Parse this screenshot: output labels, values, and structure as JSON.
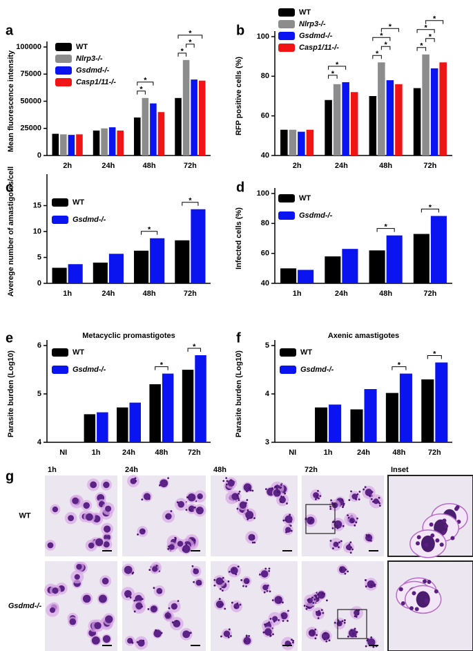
{
  "chart_data": [
    {
      "type": "bar",
      "label": "a",
      "ylabel": "Mean fluorescence intensity",
      "categories": [
        "2h",
        "24h",
        "48h",
        "72h"
      ],
      "series": [
        {
          "name": "WT",
          "color": "#000000",
          "values": [
            20000,
            23000,
            35000,
            53000
          ]
        },
        {
          "name": "Nlrp3-/-",
          "color": "#8c8c8c",
          "values": [
            19500,
            25000,
            53000,
            88000
          ]
        },
        {
          "name": "Gsdmd-/-",
          "color": "#0a14f0",
          "values": [
            19000,
            26000,
            48000,
            70000
          ]
        },
        {
          "name": "Casp1/11-/-",
          "color": "#f01414",
          "values": [
            19500,
            23000,
            40000,
            69000
          ]
        }
      ],
      "ylim": [
        0,
        100000
      ],
      "yticks": [
        0,
        25000,
        50000,
        75000,
        100000
      ],
      "significance": [
        {
          "category": 2,
          "series": [
            0,
            1
          ],
          "label": "*"
        },
        {
          "category": 2,
          "series": [
            0,
            2
          ],
          "label": "*"
        },
        {
          "category": 3,
          "series": [
            0,
            1
          ],
          "label": "*"
        },
        {
          "category": 3,
          "series": [
            1,
            2
          ],
          "label": "*"
        },
        {
          "category": 3,
          "series": [
            0,
            3
          ],
          "label": "*"
        }
      ]
    },
    {
      "type": "bar",
      "label": "b",
      "ylabel": "RFP positive cells (%)",
      "categories": [
        "2h",
        "24h",
        "48h",
        "72h"
      ],
      "series": [
        {
          "name": "WT",
          "color": "#000000",
          "values": [
            53,
            68,
            70,
            74
          ]
        },
        {
          "name": "Nlrp3-/-",
          "color": "#8c8c8c",
          "values": [
            53,
            76,
            87,
            91
          ]
        },
        {
          "name": "Gsdmd-/-",
          "color": "#0a14f0",
          "values": [
            52,
            77,
            78,
            84
          ]
        },
        {
          "name": "Casp1/11-/-",
          "color": "#f01414",
          "values": [
            53,
            72,
            76,
            87
          ]
        }
      ],
      "ylim": [
        40,
        100
      ],
      "yticks": [
        40,
        60,
        80,
        100
      ],
      "significance": [
        {
          "category": 1,
          "series": [
            0,
            1
          ],
          "label": "*"
        },
        {
          "category": 1,
          "series": [
            0,
            2
          ],
          "label": "*"
        },
        {
          "category": 2,
          "series": [
            0,
            1
          ],
          "label": "*"
        },
        {
          "category": 2,
          "series": [
            1,
            2
          ],
          "label": "*"
        },
        {
          "category": 2,
          "series": [
            0,
            2
          ],
          "label": "*"
        },
        {
          "category": 2,
          "series": [
            1,
            3
          ],
          "label": "*"
        },
        {
          "category": 3,
          "series": [
            0,
            1
          ],
          "label": "*"
        },
        {
          "category": 3,
          "series": [
            1,
            2
          ],
          "label": "*"
        },
        {
          "category": 3,
          "series": [
            0,
            2
          ],
          "label": "*"
        },
        {
          "category": 3,
          "series": [
            1,
            3
          ],
          "label": "*"
        }
      ]
    },
    {
      "type": "bar",
      "label": "c",
      "ylabel": "Averege number of amastigotes/cell",
      "categories": [
        "1h",
        "24h",
        "48h",
        "72h"
      ],
      "series": [
        {
          "name": "WT",
          "color": "#000000",
          "values": [
            3,
            4,
            6.3,
            8.3
          ]
        },
        {
          "name": "Gsdmd-/-",
          "color": "#0a14f0",
          "values": [
            3.7,
            5.7,
            8.7,
            14.3
          ]
        }
      ],
      "ylim": [
        0,
        20
      ],
      "yticks": [
        0,
        5,
        10,
        15
      ],
      "significance": [
        {
          "category": 2,
          "series": [
            0,
            1
          ],
          "label": "*"
        },
        {
          "category": 3,
          "series": [
            0,
            1
          ],
          "label": "*"
        }
      ]
    },
    {
      "type": "bar",
      "label": "d",
      "ylabel": "Infected cells (%)",
      "categories": [
        "1h",
        "24h",
        "48h",
        "72h"
      ],
      "series": [
        {
          "name": "WT",
          "color": "#000000",
          "values": [
            50,
            58,
            62,
            73
          ]
        },
        {
          "name": "Gsdmd-/-",
          "color": "#0a14f0",
          "values": [
            49,
            63,
            72,
            85
          ]
        }
      ],
      "ylim": [
        40,
        100
      ],
      "yticks": [
        40,
        60,
        80,
        100
      ],
      "significance": [
        {
          "category": 2,
          "series": [
            0,
            1
          ],
          "label": "*"
        },
        {
          "category": 3,
          "series": [
            0,
            1
          ],
          "label": "*"
        }
      ]
    },
    {
      "type": "bar",
      "label": "e",
      "title": "Metacyclic promastigotes",
      "ylabel": "Parasite burden (Log10)",
      "categories": [
        "NI",
        "1h",
        "24h",
        "48h",
        "72h"
      ],
      "series": [
        {
          "name": "WT",
          "color": "#000000",
          "values": [
            null,
            4.58,
            4.72,
            5.2,
            5.5
          ]
        },
        {
          "name": "Gsdmd-/-",
          "color": "#0a14f0",
          "values": [
            null,
            4.62,
            4.82,
            5.42,
            5.8
          ]
        }
      ],
      "ylim": [
        4,
        6
      ],
      "yticks": [
        4,
        5,
        6
      ],
      "significance": [
        {
          "category": 3,
          "series": [
            0,
            1
          ],
          "label": "*"
        },
        {
          "category": 4,
          "series": [
            0,
            1
          ],
          "label": "*"
        }
      ]
    },
    {
      "type": "bar",
      "label": "f",
      "title": "Axenic amastigotes",
      "ylabel": "Parasite burden (Log10)",
      "categories": [
        "NI",
        "1h",
        "24h",
        "48h",
        "72h"
      ],
      "series": [
        {
          "name": "WT",
          "color": "#000000",
          "values": [
            null,
            3.72,
            3.68,
            4.02,
            4.3
          ]
        },
        {
          "name": "Gsdmd-/-",
          "color": "#0a14f0",
          "values": [
            null,
            3.78,
            4.1,
            4.42,
            4.65
          ]
        }
      ],
      "ylim": [
        3,
        5
      ],
      "yticks": [
        3,
        4,
        5
      ],
      "significance": [
        {
          "category": 3,
          "series": [
            0,
            1
          ],
          "label": "*"
        },
        {
          "category": 4,
          "series": [
            0,
            1
          ],
          "label": "*"
        }
      ]
    }
  ],
  "micrographs": {
    "label": "g",
    "columns": [
      "1h",
      "24h",
      "48h",
      "72h",
      "Inset"
    ],
    "rows": [
      "WT",
      "Gsdmd-/-"
    ]
  }
}
